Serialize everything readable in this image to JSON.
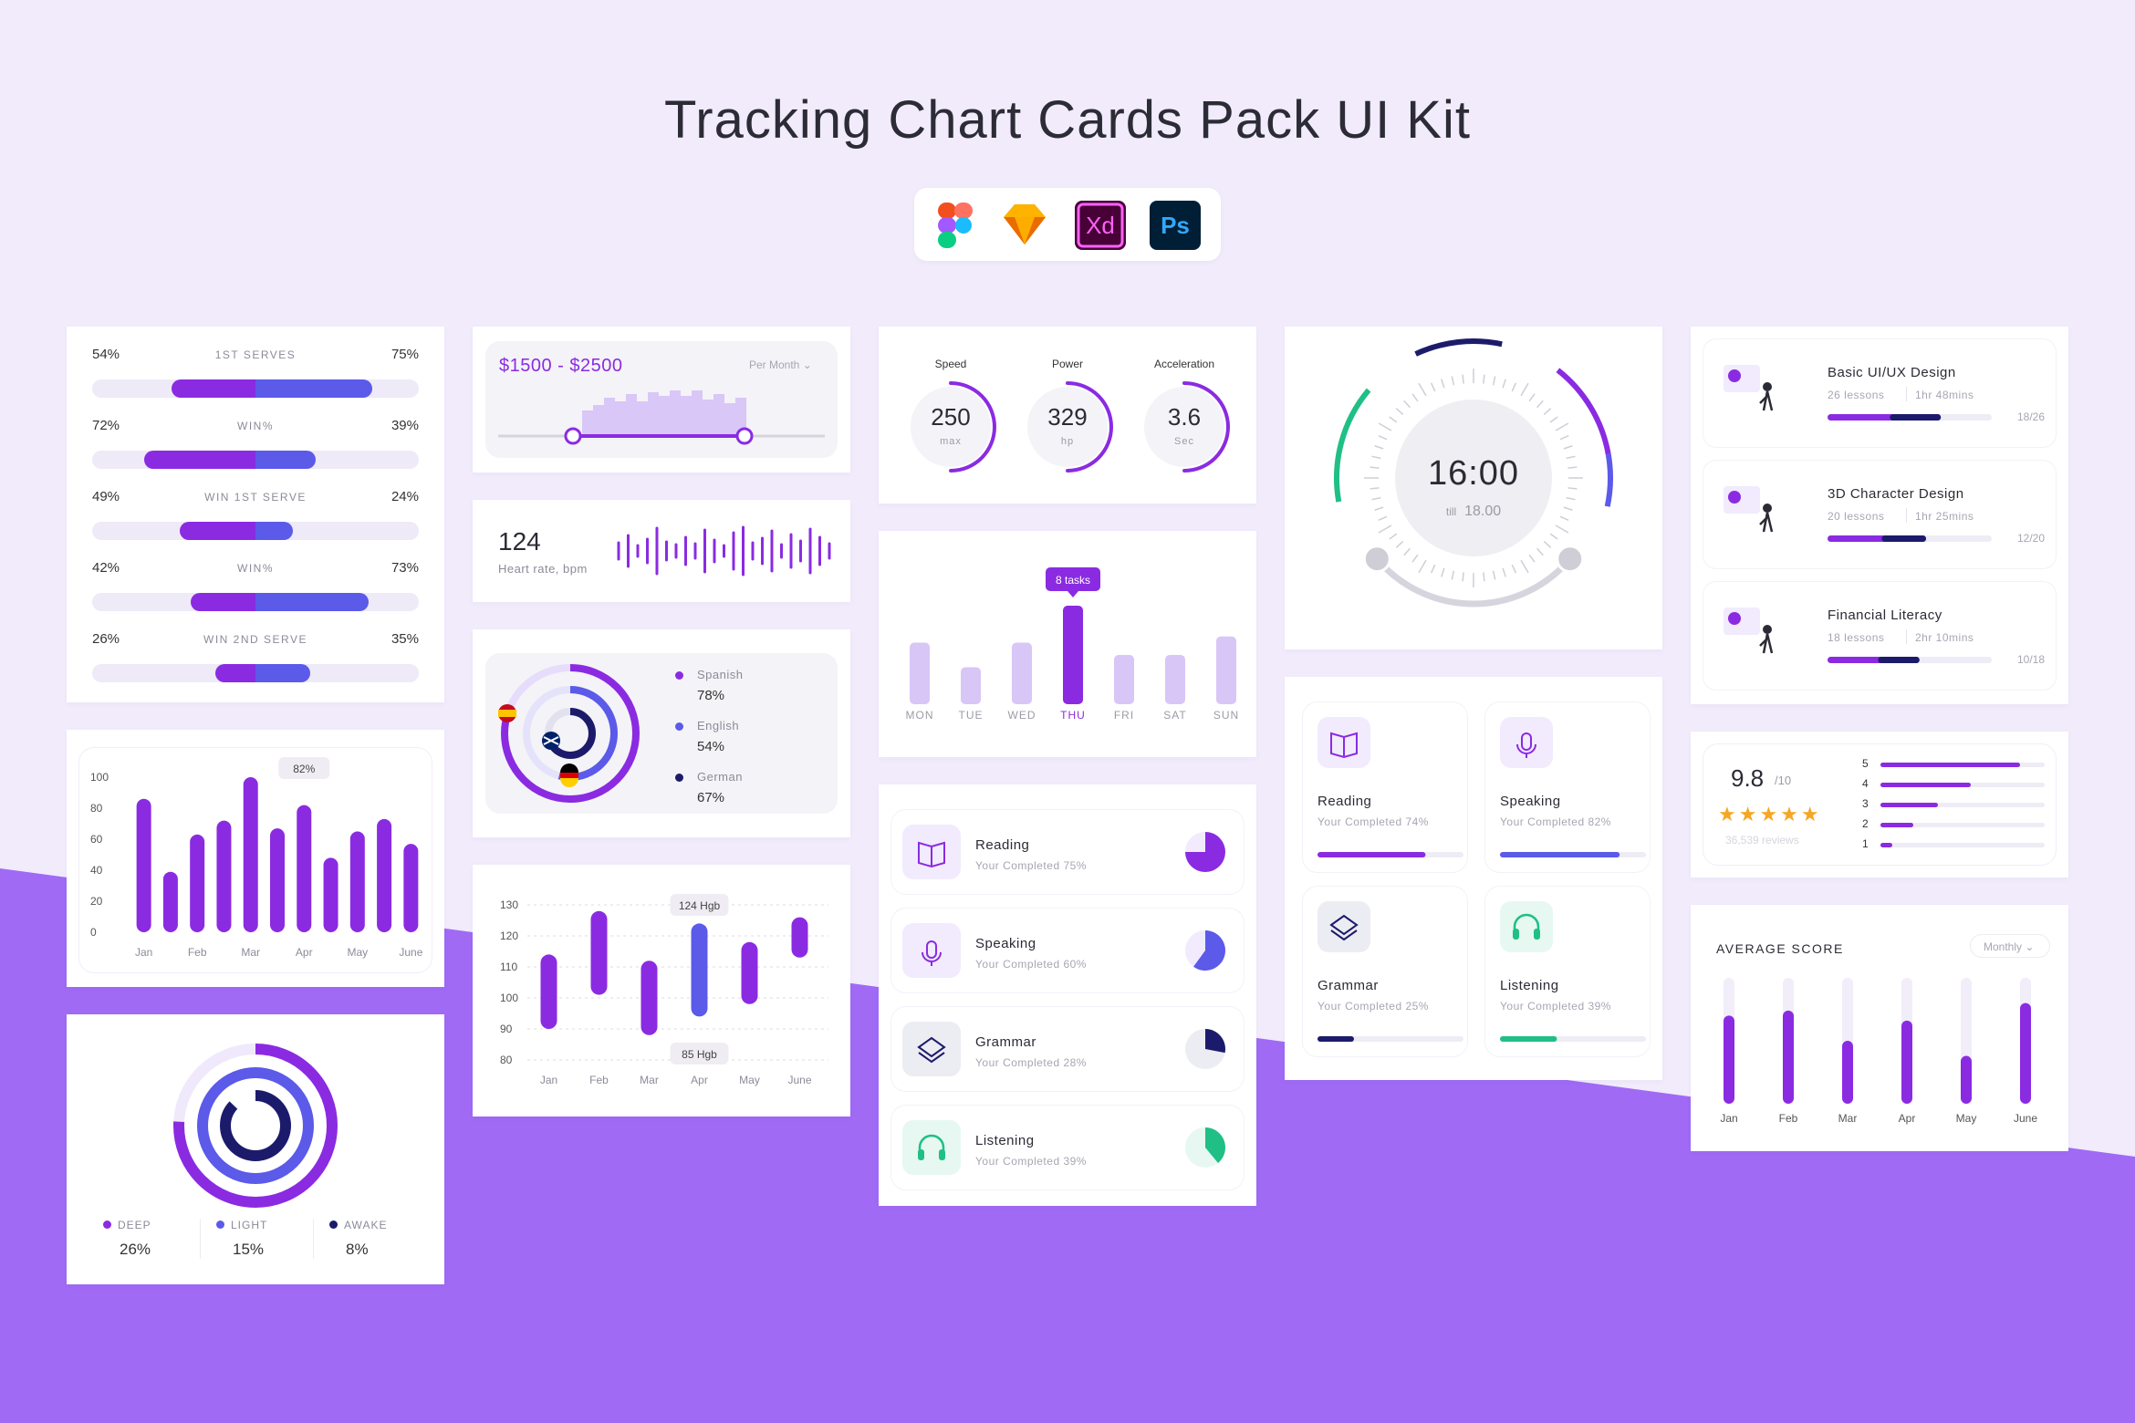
{
  "title": "Tracking Chart Cards Pack UI Kit",
  "app_icons": [
    {
      "name": "figma-icon"
    },
    {
      "name": "sketch-icon"
    },
    {
      "name": "xd-icon",
      "label": "Xd"
    },
    {
      "name": "photoshop-icon",
      "label": "Ps"
    }
  ],
  "colors": {
    "purple": "#8a2be2",
    "blue": "#5b5ae9",
    "navy": "#1c1b6b",
    "lavender": "#d8c6f7",
    "green": "#1fbf85",
    "orange": "#f5a623"
  },
  "serves": {
    "rows": [
      {
        "left": "54%",
        "label": "1ST SERVES",
        "right": "75%",
        "a": 0.54,
        "b": 0.75
      },
      {
        "left": "72%",
        "label": "WIN%",
        "right": "39%",
        "a": 0.72,
        "b": 0.39
      },
      {
        "left": "49%",
        "label": "WIN 1ST SERVE",
        "right": "24%",
        "a": 0.49,
        "b": 0.24
      },
      {
        "left": "42%",
        "label": "WIN%",
        "right": "73%",
        "a": 0.42,
        "b": 0.73
      },
      {
        "left": "26%",
        "label": "WIN 2ND SERVE",
        "right": "35%",
        "a": 0.26,
        "b": 0.35
      }
    ]
  },
  "bar_card": {
    "tooltip": "82%",
    "yticks": [
      "100",
      "80",
      "60",
      "40",
      "20",
      "0"
    ],
    "xlabels": [
      "Jan",
      "Feb",
      "Mar",
      "Apr",
      "May",
      "June"
    ]
  },
  "chart_data": [
    {
      "type": "bar",
      "categories": [
        "Jan",
        "",
        "Feb",
        "",
        "Mar",
        "",
        "Apr",
        "",
        "May",
        "",
        "June"
      ],
      "values": [
        86,
        39,
        63,
        72,
        100,
        67,
        82,
        48,
        65,
        73,
        57
      ],
      "ylim": [
        0,
        100
      ]
    },
    {
      "type": "bar",
      "title": "",
      "categories": [
        "Jan",
        "Feb",
        "Mar",
        "Apr",
        "May",
        "June"
      ],
      "ranges": [
        [
          90,
          114
        ],
        [
          101,
          128
        ],
        [
          88,
          112
        ],
        [
          94,
          124
        ],
        [
          98,
          118
        ],
        [
          113,
          126
        ]
      ],
      "annotations": [
        "124 Hgb",
        "85 Hgb"
      ],
      "ylim": [
        80,
        130
      ]
    },
    {
      "type": "bar",
      "categories": [
        "MON",
        "TUE",
        "WED",
        "THU",
        "FRI",
        "SAT",
        "SUN"
      ],
      "values": [
        5,
        3,
        5,
        8,
        4,
        4,
        5.5
      ],
      "annotation": "8 tasks"
    },
    {
      "type": "bar",
      "title": "AVERAGE SCORE",
      "categories": [
        "Jan",
        "Feb",
        "Mar",
        "Apr",
        "May",
        "June"
      ],
      "values": [
        0.7,
        0.74,
        0.5,
        0.66,
        0.38,
        0.8
      ]
    }
  ],
  "price": {
    "range": "$1500 - $2500",
    "period": "Per Month"
  },
  "heart": {
    "value": "124",
    "label": "Heart rate, bpm"
  },
  "languages": [
    {
      "name": "Spanish",
      "value": "78%"
    },
    {
      "name": "English",
      "value": "54%"
    },
    {
      "name": "German",
      "value": "67%"
    }
  ],
  "sleep": [
    {
      "name": "DEEP",
      "value": "26%"
    },
    {
      "name": "LIGHT",
      "value": "15%"
    },
    {
      "name": "AWAKE",
      "value": "8%"
    }
  ],
  "gauges": [
    {
      "label": "Speed",
      "value": "250",
      "unit": "max",
      "level": 0.5
    },
    {
      "label": "Power",
      "value": "329",
      "unit": "hp",
      "level": 0.5
    },
    {
      "label": "Acceleration",
      "value": "3.6",
      "unit": "Sec",
      "level": 0.5
    }
  ],
  "tasks": {
    "tooltip": "8 tasks"
  },
  "skills_list": [
    {
      "name": "Reading",
      "sub": "Your Completed 75%",
      "pct": 0.75
    },
    {
      "name": "Speaking",
      "sub": "Your Completed 60%",
      "pct": 0.6
    },
    {
      "name": "Grammar",
      "sub": "Your Completed 28%",
      "pct": 0.28
    },
    {
      "name": "Listening",
      "sub": "Your Completed 39%",
      "pct": 0.39
    }
  ],
  "timer": {
    "time": "16:00",
    "till_label": "till",
    "till": "18.00"
  },
  "skills_grid": [
    {
      "name": "Reading",
      "sub": "Your Completed 74%",
      "pct": 0.74
    },
    {
      "name": "Speaking",
      "sub": "Your Completed 82%",
      "pct": 0.82
    },
    {
      "name": "Grammar",
      "sub": "Your Completed 25%",
      "pct": 0.25
    },
    {
      "name": "Listening",
      "sub": "Your Completed 39%",
      "pct": 0.39
    }
  ],
  "courses": [
    {
      "name": "Basic UI/UX Design",
      "lessons": "26 lessons",
      "time": "1hr 48mins",
      "count": "18/26",
      "pct": 0.69
    },
    {
      "name": "3D Character Design",
      "lessons": "20 lessons",
      "time": "1hr 25mins",
      "count": "12/20",
      "pct": 0.6
    },
    {
      "name": "Financial Literacy",
      "lessons": "18 lessons",
      "time": "2hr 10mins",
      "count": "10/18",
      "pct": 0.56
    }
  ],
  "rating": {
    "score": "9.8",
    "outof": "/10",
    "reviews": "36,539 reviews",
    "rows": [
      {
        "k": "5",
        "v": 0.85
      },
      {
        "k": "4",
        "v": 0.55
      },
      {
        "k": "3",
        "v": 0.35
      },
      {
        "k": "2",
        "v": 0.2
      },
      {
        "k": "1",
        "v": 0.07
      }
    ]
  },
  "avg": {
    "title": "AVERAGE SCORE",
    "period": "Monthly"
  }
}
